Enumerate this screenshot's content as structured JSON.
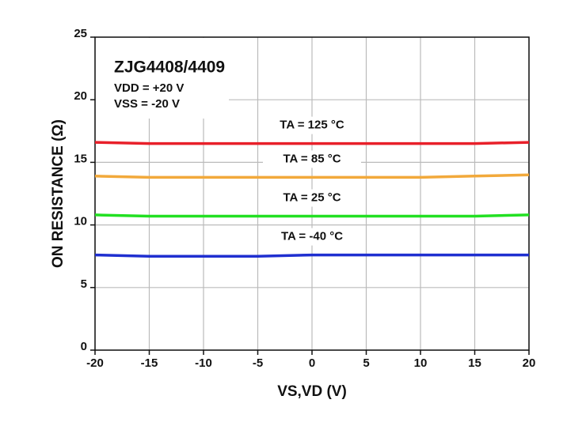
{
  "chart_data": {
    "type": "line",
    "annotations": [
      "ZJG4408/4409",
      "VDD = +20 V",
      "VSS = -20 V"
    ],
    "x_label": "VS,VD (V)",
    "y_label": "ON RESISTANCE (Ω)",
    "x": [
      -20,
      -15,
      -10,
      -5,
      0,
      5,
      10,
      15,
      20
    ],
    "series": [
      {
        "name": "TA = 125 °C",
        "color": "#e8202a",
        "values": [
          16.6,
          16.5,
          16.5,
          16.5,
          16.5,
          16.5,
          16.5,
          16.5,
          16.6
        ]
      },
      {
        "name": "TA = 85 °C",
        "color": "#f2a93b",
        "values": [
          13.9,
          13.8,
          13.8,
          13.8,
          13.8,
          13.8,
          13.8,
          13.9,
          14.0
        ]
      },
      {
        "name": "TA = 25 °C",
        "color": "#22e022",
        "values": [
          10.8,
          10.7,
          10.7,
          10.7,
          10.7,
          10.7,
          10.7,
          10.7,
          10.8
        ]
      },
      {
        "name": "TA = -40 °C",
        "color": "#1f2fd0",
        "values": [
          7.6,
          7.5,
          7.5,
          7.5,
          7.6,
          7.6,
          7.6,
          7.6,
          7.6
        ]
      }
    ],
    "xlim": [
      -20,
      20
    ],
    "xticks": [
      -20,
      -15,
      -10,
      -5,
      0,
      5,
      10,
      15,
      20
    ],
    "ylim": [
      0,
      25
    ],
    "yticks": [
      0,
      5,
      10,
      15,
      20,
      25
    ],
    "grid": true
  }
}
